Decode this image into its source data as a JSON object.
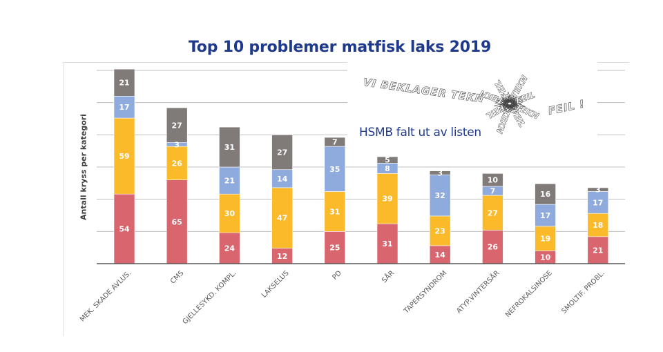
{
  "chart_data": {
    "type": "bar",
    "stacked": true,
    "title": "Top 10 problemer matfisk laks 2019",
    "xlabel": "",
    "ylabel": "Antall kryss per kategori",
    "ylim": [
      0,
      150
    ],
    "y_grid_step": 25,
    "grid": true,
    "legend": "none",
    "categories": [
      "MEK. SKADE AVLUS.",
      "CMS",
      "GJELLESYKD. KOMPL.",
      "LAKSELUS",
      "PD",
      "SÅR",
      "TAPERSYNDROM",
      "ATYP.VINTERSÅR",
      "NEFROKALSINOSE",
      "SMOLTIF. PROBL."
    ],
    "series": [
      {
        "name": "series1",
        "color": "#D9656E",
        "values": [
          54,
          65,
          24,
          12,
          25,
          31,
          14,
          26,
          10,
          21
        ]
      },
      {
        "name": "series2",
        "color": "#FBBA2A",
        "values": [
          59,
          26,
          30,
          47,
          31,
          39,
          23,
          27,
          19,
          18
        ]
      },
      {
        "name": "series3",
        "color": "#8FAADC",
        "values": [
          17,
          3,
          21,
          14,
          35,
          8,
          32,
          7,
          17,
          17
        ]
      },
      {
        "name": "series4",
        "color": "#807B78",
        "values": [
          21,
          27,
          31,
          27,
          7,
          5,
          3,
          10,
          16,
          3
        ]
      }
    ],
    "annotations": [
      {
        "text": "VI BEKLAGER TEKNISK FEIL !",
        "kind": "stamp-graphic"
      },
      {
        "text": "HSMB falt ut av listen",
        "kind": "note"
      }
    ]
  },
  "overlay": {
    "stamp_text_1": "VI BEKLAGER TEKN",
    "stamp_text_2": "FEIL !",
    "stamp_word": "TEKN",
    "stamp_word_2": "FEIL",
    "note": "HSMB falt ut av listen"
  }
}
